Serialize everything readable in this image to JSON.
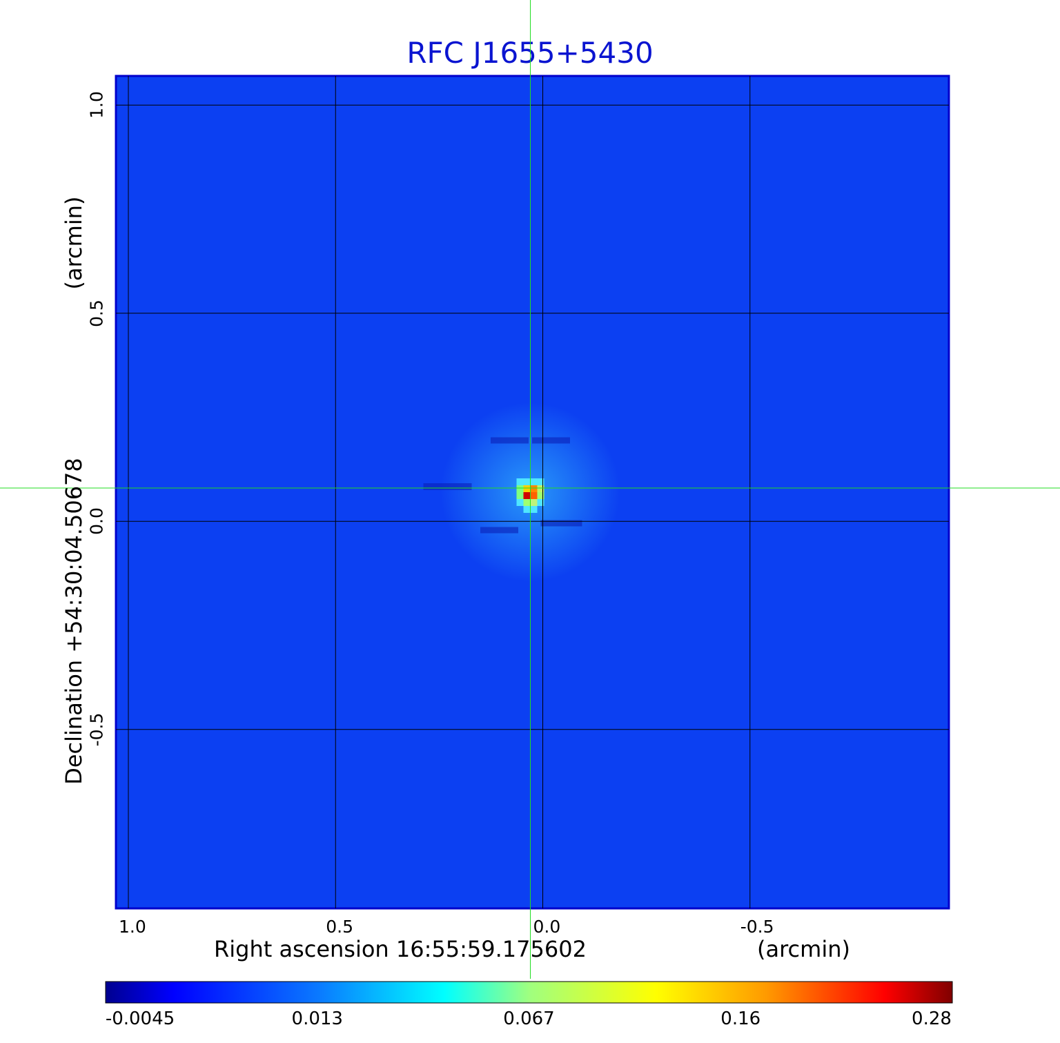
{
  "chart_data": {
    "type": "heatmap",
    "title": "RFC J1655+5430",
    "xlabel": "Right ascension  16:55:59.175602",
    "xlabel_unit": "(arcmin)",
    "ylabel": "Declination  +54:30:04.50678",
    "ylabel_unit": "(arcmin)",
    "xlim": [
      1.03,
      -0.98
    ],
    "ylim": [
      -0.93,
      1.07
    ],
    "x_axis_reversed": true,
    "x_ticks": [
      "1.0",
      "0.5",
      "0.0",
      "-0.5"
    ],
    "y_ticks": [
      "1.0",
      "0.5",
      "0.0",
      "-0.5"
    ],
    "grid": true,
    "crosshair": {
      "x": 0.03,
      "y": 0.08,
      "color": "#22dd22"
    },
    "source_peak": {
      "x": 0.03,
      "y": 0.07,
      "value": 0.28
    },
    "background_level": -0.002,
    "colorbar": {
      "colormap": "jet",
      "position": "bottom",
      "ticks": [
        "-0.0045",
        "0.013",
        "0.067",
        "0.16",
        "0.28"
      ]
    }
  }
}
